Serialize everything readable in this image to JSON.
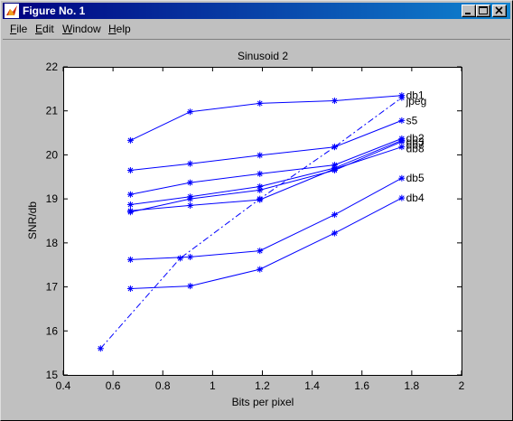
{
  "window": {
    "title": "Figure No. 1",
    "menu": [
      {
        "label": "File",
        "hot": "F",
        "rest": "ile"
      },
      {
        "label": "Edit",
        "hot": "E",
        "rest": "dit"
      },
      {
        "label": "Window",
        "hot": "W",
        "rest": "indow"
      },
      {
        "label": "Help",
        "hot": "H",
        "rest": "elp"
      }
    ],
    "buttons": [
      "minimize-icon",
      "maximize-icon",
      "close-icon"
    ]
  },
  "colors": {
    "series": "#0000ff",
    "axes_bg": "#ffffff",
    "figure_bg": "#c0c0c0",
    "titlebar": "#000080"
  },
  "chart_data": {
    "type": "line",
    "title": "Sinusoid 2",
    "xlabel": "Bits per pixel",
    "ylabel": "SNR/db",
    "xlim": [
      0.4,
      2
    ],
    "ylim": [
      15,
      22
    ],
    "xticks": [
      "0.4",
      "0.6",
      "0.8",
      "1",
      "1.2",
      "1.4",
      "1.6",
      "1.8",
      "2"
    ],
    "yticks": [
      "15",
      "16",
      "17",
      "18",
      "19",
      "20",
      "21",
      "22"
    ],
    "grid": false,
    "series": [
      {
        "name": "db1",
        "style": "solid",
        "x": [
          0.67,
          0.91,
          1.19,
          1.49,
          1.76
        ],
        "y": [
          20.33,
          20.98,
          21.17,
          21.23,
          21.35
        ]
      },
      {
        "name": "jpeg",
        "style": "dashdot",
        "x": [
          0.55,
          0.87,
          1.19,
          1.49,
          1.76
        ],
        "y": [
          15.6,
          17.65,
          19.0,
          20.18,
          21.3
        ]
      },
      {
        "name": "s5",
        "style": "solid",
        "x": [
          0.67,
          0.91,
          1.19,
          1.49,
          1.76
        ],
        "y": [
          19.65,
          19.8,
          19.99,
          20.18,
          20.78
        ]
      },
      {
        "name": "db2",
        "style": "solid",
        "x": [
          0.67,
          0.91,
          1.19,
          1.49,
          1.76
        ],
        "y": [
          19.1,
          19.37,
          19.57,
          19.77,
          20.37
        ]
      },
      {
        "name": "db3",
        "style": "solid",
        "x": [
          0.67,
          0.91,
          1.19,
          1.49,
          1.76
        ],
        "y": [
          18.87,
          19.05,
          19.28,
          19.7,
          20.33
        ]
      },
      {
        "name": "db7",
        "style": "solid",
        "x": [
          0.67,
          0.91,
          1.19,
          1.49,
          1.76
        ],
        "y": [
          18.7,
          19.0,
          19.2,
          19.65,
          20.3
        ]
      },
      {
        "name": "db8",
        "style": "solid",
        "x": [
          0.67,
          0.91,
          1.19,
          1.49,
          1.76
        ],
        "y": [
          18.73,
          18.85,
          18.98,
          19.68,
          20.18
        ]
      },
      {
        "name": "db5",
        "style": "solid",
        "x": [
          0.67,
          0.91,
          1.19,
          1.49,
          1.76
        ],
        "y": [
          17.62,
          17.68,
          17.82,
          18.64,
          19.47
        ]
      },
      {
        "name": "db4",
        "style": "solid",
        "x": [
          0.67,
          0.91,
          1.19,
          1.49,
          1.76
        ],
        "y": [
          16.96,
          17.02,
          17.4,
          18.22,
          19.02
        ]
      }
    ],
    "annotations": [
      {
        "text": "db1",
        "x": 1.77,
        "y": 21.35
      },
      {
        "text": "jpeg",
        "x": 1.77,
        "y": 21.22
      },
      {
        "text": "s5",
        "x": 1.77,
        "y": 20.78
      },
      {
        "text": "db2",
        "x": 1.77,
        "y": 20.38
      },
      {
        "text": "db3",
        "x": 1.77,
        "y": 20.3
      },
      {
        "text": "db7",
        "x": 1.77,
        "y": 20.22
      },
      {
        "text": "db8",
        "x": 1.77,
        "y": 20.14
      },
      {
        "text": "db5",
        "x": 1.77,
        "y": 19.47
      },
      {
        "text": "db4",
        "x": 1.77,
        "y": 19.02
      }
    ]
  }
}
